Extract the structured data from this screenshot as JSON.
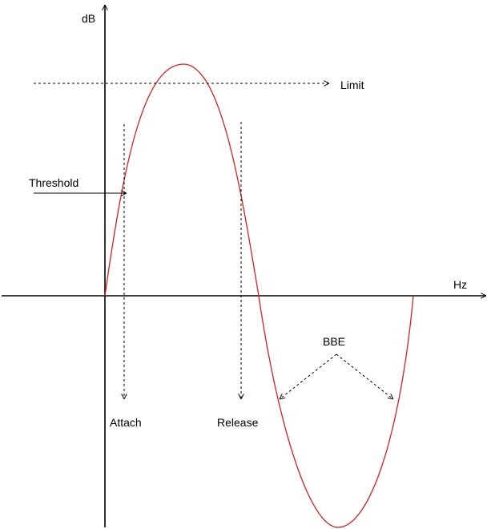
{
  "labels": {
    "y_axis": "dB",
    "x_axis": "Hz",
    "limit": "Limit",
    "threshold": "Threshold",
    "attach": "Attach",
    "release": "Release",
    "bbe": "BBE"
  },
  "colors": {
    "axis": "#000000",
    "curve": "#d42020",
    "background": "#ffffff"
  }
}
